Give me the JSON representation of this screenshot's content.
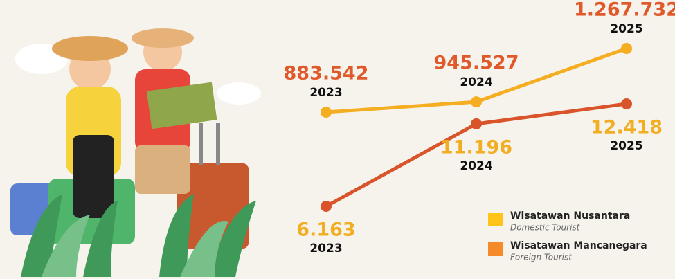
{
  "chart_data": {
    "type": "line",
    "categories": [
      "2023",
      "2024",
      "2025"
    ],
    "ylim": [
      -122868,
      1560052
    ],
    "y2lim": [
      1726,
      18757
    ],
    "series": [
      {
        "name": "Wisatawan Nusantara",
        "legend_subtitle": "Domestic Tourist",
        "color": "#f5ae22",
        "label_color": "#e0592b",
        "legend_color": "#ffc31a",
        "values": [
          883542,
          945527,
          1267732
        ],
        "value_labels": [
          "883.542",
          "945.527",
          "1.267.732"
        ]
      },
      {
        "name": "Wisatawan Mancanegara",
        "legend_subtitle": "Foreign Tourist",
        "color": "#d9542a",
        "label_color": "#f2ae22",
        "legend_color": "#f58a2a",
        "axis": "y2",
        "values": [
          6163,
          11196,
          12418
        ],
        "value_labels": [
          "6.163",
          "11.196",
          "12.418"
        ]
      }
    ]
  }
}
